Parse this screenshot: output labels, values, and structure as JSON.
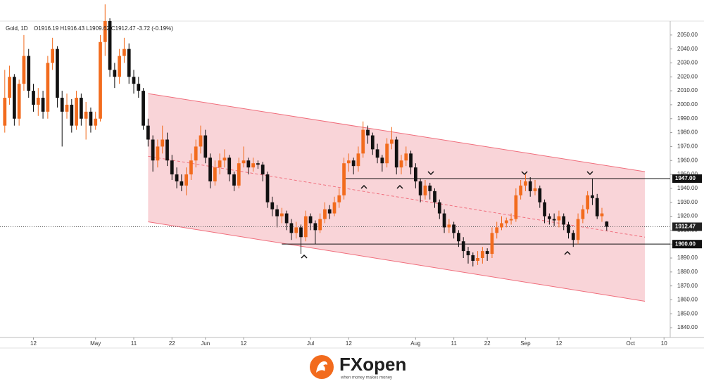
{
  "chart_data": {
    "type": "candlestick",
    "title": "Gold, 1D",
    "ohlc_readout": "O1916.19  H1916.43  L1909.62  C1912.47  -3.72 (-0.19%)",
    "up_color": "#f26b1d",
    "down_color": "#111111",
    "channel_color": "#f7c6cb",
    "channel_line_color": "#f06e7c",
    "xlim": [
      -1,
      139
    ],
    "ylim": [
      1833,
      2060
    ],
    "xticks": [
      {
        "value": 6,
        "label": "12"
      },
      {
        "value": 19,
        "label": "May"
      },
      {
        "value": 27,
        "label": "11"
      },
      {
        "value": 35,
        "label": "22"
      },
      {
        "value": 42,
        "label": "Jun"
      },
      {
        "value": 50,
        "label": "12"
      },
      {
        "value": 64,
        "label": "Jul"
      },
      {
        "value": 72,
        "label": "12"
      },
      {
        "value": 86,
        "label": "Aug"
      },
      {
        "value": 94,
        "label": "11"
      },
      {
        "value": 101,
        "label": "22"
      },
      {
        "value": 109,
        "label": "Sep"
      },
      {
        "value": 116,
        "label": "12"
      },
      {
        "value": 131,
        "label": "Oct"
      },
      {
        "value": 138,
        "label": "10"
      }
    ],
    "yticks": [
      {
        "value": 1840,
        "label": "1840.00"
      },
      {
        "value": 1850,
        "label": "1850.00"
      },
      {
        "value": 1860,
        "label": "1860.00"
      },
      {
        "value": 1870,
        "label": "1870.00"
      },
      {
        "value": 1880,
        "label": "1880.00"
      },
      {
        "value": 1890,
        "label": "1890.00"
      },
      {
        "value": 1900,
        "label": "1900.00"
      },
      {
        "value": 1910,
        "label": "1910.00"
      },
      {
        "value": 1920,
        "label": "1920.00"
      },
      {
        "value": 1930,
        "label": "1930.00"
      },
      {
        "value": 1940,
        "label": "1940.00"
      },
      {
        "value": 1950,
        "label": "1950.00"
      },
      {
        "value": 1960,
        "label": "1960.00"
      },
      {
        "value": 1970,
        "label": "1970.00"
      },
      {
        "value": 1980,
        "label": "1980.00"
      },
      {
        "value": 1990,
        "label": "1990.00"
      },
      {
        "value": 2000,
        "label": "2000.00"
      },
      {
        "value": 2010,
        "label": "2010.00"
      },
      {
        "value": 2020,
        "label": "2020.00"
      },
      {
        "value": 2030,
        "label": "2030.00"
      },
      {
        "value": 2040,
        "label": "2040.00"
      },
      {
        "value": 2050,
        "label": "2050.00"
      }
    ],
    "channel": {
      "upper": [
        [
          30,
          2008
        ],
        [
          134,
          1952
        ]
      ],
      "lower": [
        [
          30,
          1916
        ],
        [
          134,
          1859
        ]
      ],
      "middle": [
        [
          30,
          1963
        ],
        [
          134,
          1905
        ]
      ]
    },
    "levels": [
      {
        "value": 1947,
        "label": "1947.00",
        "start": 71
      },
      {
        "value": 1900,
        "label": "1900.00",
        "start": 58
      }
    ],
    "last_price": {
      "value": 1912.47,
      "label": "1912.47"
    },
    "x": [
      0,
      1,
      2,
      3,
      4,
      5,
      6,
      7,
      8,
      9,
      10,
      11,
      12,
      13,
      14,
      15,
      16,
      17,
      18,
      19,
      20,
      21,
      22,
      23,
      24,
      25,
      26,
      27,
      28,
      29,
      30,
      31,
      32,
      33,
      34,
      35,
      36,
      37,
      38,
      39,
      40,
      41,
      42,
      43,
      44,
      45,
      46,
      47,
      48,
      49,
      50,
      51,
      52,
      53,
      54,
      55,
      56,
      57,
      58,
      59,
      60,
      61,
      62,
      63,
      64,
      65,
      66,
      67,
      68,
      69,
      70,
      71,
      72,
      73,
      74,
      75,
      76,
      77,
      78,
      79,
      80,
      81,
      82,
      83,
      84,
      85,
      86,
      87,
      88,
      89,
      90,
      91,
      92,
      93,
      94,
      95,
      96,
      97,
      98,
      99,
      100,
      101,
      102,
      103,
      104,
      105,
      106,
      107,
      108,
      109,
      110,
      111,
      112,
      113,
      114,
      115,
      116,
      117,
      118,
      119,
      120,
      121,
      122,
      123,
      124,
      125,
      126
    ],
    "ohlc": [
      [
        1985,
        2025,
        1980,
        2005
      ],
      [
        2005,
        2028,
        2000,
        2020
      ],
      [
        2020,
        2022,
        1985,
        1990
      ],
      [
        1990,
        2018,
        1985,
        2015
      ],
      [
        2015,
        2050,
        2010,
        2035
      ],
      [
        2035,
        2040,
        2005,
        2010
      ],
      [
        2010,
        2015,
        1995,
        2000
      ],
      [
        2000,
        2012,
        1992,
        2005
      ],
      [
        2005,
        2010,
        1990,
        1995
      ],
      [
        1995,
        2035,
        1990,
        2030
      ],
      [
        2030,
        2048,
        2025,
        2040
      ],
      [
        2040,
        2042,
        1998,
        2005
      ],
      [
        2005,
        2010,
        1970,
        1995
      ],
      [
        1995,
        2008,
        1990,
        2000
      ],
      [
        2000,
        2004,
        1980,
        1985
      ],
      [
        1985,
        2010,
        1982,
        2005
      ],
      [
        2005,
        2008,
        1985,
        1990
      ],
      [
        1990,
        2002,
        1975,
        1995
      ],
      [
        1995,
        1998,
        1980,
        1985
      ],
      [
        1985,
        1995,
        1982,
        1990
      ],
      [
        1990,
        2050,
        1988,
        2045
      ],
      [
        2045,
        2072,
        2035,
        2060
      ],
      [
        2060,
        2062,
        2020,
        2025
      ],
      [
        2025,
        2030,
        2012,
        2020
      ],
      [
        2020,
        2040,
        2015,
        2035
      ],
      [
        2035,
        2048,
        2030,
        2040
      ],
      [
        2040,
        2044,
        2015,
        2020
      ],
      [
        2020,
        2025,
        2008,
        2015
      ],
      [
        2015,
        2020,
        2005,
        2010
      ],
      [
        2010,
        2012,
        1982,
        1985
      ],
      [
        1985,
        1990,
        1970,
        1975
      ],
      [
        1975,
        1978,
        1952,
        1960
      ],
      [
        1960,
        1975,
        1955,
        1970
      ],
      [
        1970,
        1985,
        1965,
        1975
      ],
      [
        1975,
        1980,
        1956,
        1960
      ],
      [
        1960,
        1964,
        1946,
        1950
      ],
      [
        1950,
        1955,
        1940,
        1945
      ],
      [
        1945,
        1950,
        1938,
        1942
      ],
      [
        1942,
        1955,
        1935,
        1950
      ],
      [
        1950,
        1965,
        1946,
        1960
      ],
      [
        1960,
        1975,
        1955,
        1970
      ],
      [
        1970,
        1985,
        1965,
        1978
      ],
      [
        1978,
        1982,
        1958,
        1962
      ],
      [
        1962,
        1965,
        1940,
        1945
      ],
      [
        1945,
        1960,
        1942,
        1955
      ],
      [
        1955,
        1965,
        1950,
        1960
      ],
      [
        1960,
        1968,
        1955,
        1962
      ],
      [
        1962,
        1964,
        1945,
        1950
      ],
      [
        1950,
        1952,
        1938,
        1942
      ],
      [
        1942,
        1962,
        1940,
        1958
      ],
      [
        1958,
        1970,
        1955,
        1960
      ],
      [
        1960,
        1962,
        1950,
        1955
      ],
      [
        1955,
        1962,
        1952,
        1958
      ],
      [
        1958,
        1960,
        1954,
        1957
      ],
      [
        1957,
        1959,
        1945,
        1950
      ],
      [
        1950,
        1952,
        1926,
        1930
      ],
      [
        1930,
        1934,
        1920,
        1925
      ],
      [
        1925,
        1928,
        1912,
        1920
      ],
      [
        1920,
        1926,
        1915,
        1922
      ],
      [
        1922,
        1924,
        1910,
        1915
      ],
      [
        1915,
        1918,
        1903,
        1908
      ],
      [
        1908,
        1916,
        1904,
        1912
      ],
      [
        1912,
        1914,
        1893,
        1905
      ],
      [
        1905,
        1924,
        1902,
        1920
      ],
      [
        1920,
        1922,
        1910,
        1915
      ],
      [
        1915,
        1917,
        1900,
        1910
      ],
      [
        1910,
        1922,
        1908,
        1918
      ],
      [
        1918,
        1930,
        1915,
        1925
      ],
      [
        1925,
        1928,
        1918,
        1922
      ],
      [
        1922,
        1934,
        1920,
        1930
      ],
      [
        1930,
        1940,
        1926,
        1935
      ],
      [
        1935,
        1962,
        1932,
        1958
      ],
      [
        1958,
        1965,
        1952,
        1960
      ],
      [
        1960,
        1962,
        1950,
        1956
      ],
      [
        1956,
        1970,
        1952,
        1965
      ],
      [
        1965,
        1988,
        1962,
        1982
      ],
      [
        1982,
        1985,
        1972,
        1978
      ],
      [
        1978,
        1980,
        1964,
        1968
      ],
      [
        1968,
        1972,
        1958,
        1962
      ],
      [
        1962,
        1964,
        1952,
        1958
      ],
      [
        1958,
        1976,
        1955,
        1972
      ],
      [
        1972,
        1984,
        1968,
        1975
      ],
      [
        1975,
        1977,
        1950,
        1955
      ],
      [
        1955,
        1964,
        1950,
        1960
      ],
      [
        1960,
        1970,
        1956,
        1965
      ],
      [
        1965,
        1967,
        1950,
        1955
      ],
      [
        1955,
        1958,
        1940,
        1945
      ],
      [
        1945,
        1947,
        1930,
        1935
      ],
      [
        1935,
        1946,
        1932,
        1942
      ],
      [
        1942,
        1944,
        1932,
        1938
      ],
      [
        1938,
        1940,
        1926,
        1930
      ],
      [
        1930,
        1932,
        1918,
        1922
      ],
      [
        1922,
        1925,
        1908,
        1912
      ],
      [
        1912,
        1918,
        1908,
        1914
      ],
      [
        1914,
        1916,
        1904,
        1908
      ],
      [
        1908,
        1910,
        1898,
        1902
      ],
      [
        1902,
        1905,
        1890,
        1895
      ],
      [
        1895,
        1898,
        1886,
        1892
      ],
      [
        1892,
        1894,
        1884,
        1888
      ],
      [
        1888,
        1895,
        1885,
        1890
      ],
      [
        1890,
        1898,
        1886,
        1895
      ],
      [
        1895,
        1897,
        1888,
        1893
      ],
      [
        1893,
        1912,
        1890,
        1908
      ],
      [
        1908,
        1916,
        1904,
        1912
      ],
      [
        1912,
        1920,
        1910,
        1915
      ],
      [
        1915,
        1919,
        1912,
        1917
      ],
      [
        1917,
        1922,
        1914,
        1918
      ],
      [
        1918,
        1940,
        1916,
        1935
      ],
      [
        1935,
        1946,
        1932,
        1942
      ],
      [
        1942,
        1950,
        1938,
        1945
      ],
      [
        1945,
        1948,
        1934,
        1938
      ],
      [
        1938,
        1946,
        1935,
        1940
      ],
      [
        1940,
        1942,
        1926,
        1930
      ],
      [
        1930,
        1932,
        1915,
        1920
      ],
      [
        1920,
        1922,
        1914,
        1918
      ],
      [
        1918,
        1922,
        1913,
        1917
      ],
      [
        1917,
        1924,
        1912,
        1920
      ],
      [
        1920,
        1922,
        1910,
        1914
      ],
      [
        1914,
        1916,
        1904,
        1908
      ],
      [
        1908,
        1910,
        1898,
        1903
      ],
      [
        1903,
        1922,
        1900,
        1918
      ],
      [
        1918,
        1928,
        1915,
        1925
      ],
      [
        1925,
        1938,
        1922,
        1935
      ],
      [
        1935,
        1947,
        1928,
        1933
      ],
      [
        1933,
        1936,
        1918,
        1920
      ],
      [
        1920,
        1926,
        1916,
        1922
      ],
      [
        1916.19,
        1916.43,
        1909.62,
        1912.47
      ]
    ]
  },
  "footer": {
    "brand": "FXopen",
    "tagline": "when money makes money"
  }
}
